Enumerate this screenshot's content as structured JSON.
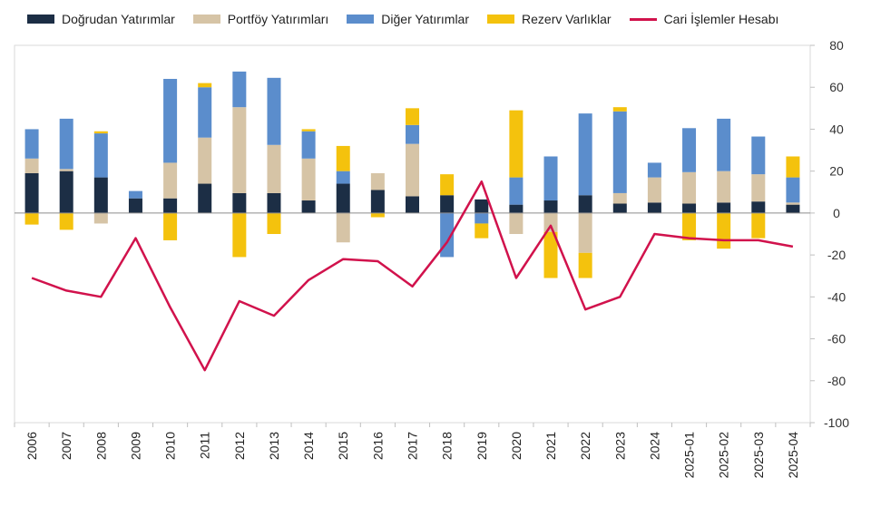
{
  "chart_data": {
    "type": "bar",
    "stacked": true,
    "categories": [
      "2006",
      "2007",
      "2008",
      "2009",
      "2010",
      "2011",
      "2012",
      "2013",
      "2014",
      "2015",
      "2016",
      "2017",
      "2018",
      "2019",
      "2020",
      "2021",
      "2022",
      "2023",
      "2024",
      "2025-01",
      "2025-02",
      "2025-03",
      "2025-04"
    ],
    "series": [
      {
        "name": "Doğrudan Yatırımlar",
        "kind": "bar",
        "color": "#1c2e45",
        "values": [
          19,
          20,
          17,
          7,
          7,
          14,
          9.5,
          9.5,
          6,
          14,
          11,
          8,
          8.5,
          6.5,
          4,
          6,
          8.5,
          4.5,
          5,
          4.5,
          5,
          5.5,
          4
        ]
      },
      {
        "name": "Portföy Yatırımları",
        "kind": "bar",
        "color": "#d6c4a6",
        "values": [
          7,
          1,
          -5,
          0,
          17,
          22,
          41,
          23,
          20,
          -14,
          8,
          25,
          0,
          0,
          -10,
          -9,
          -19,
          5,
          12,
          15,
          15,
          13,
          1
        ]
      },
      {
        "name": "Diğer Yatırımlar",
        "kind": "bar",
        "color": "#5b8dcc",
        "values": [
          14,
          24,
          21,
          3.5,
          40,
          24,
          17,
          32,
          13,
          6,
          0,
          9,
          -21,
          -5,
          13,
          21,
          39,
          39,
          7,
          21,
          25,
          18,
          12
        ]
      },
      {
        "name": "Rezerv Varlıklar",
        "kind": "bar",
        "color": "#f4c20d",
        "values": [
          -5.5,
          -8,
          1,
          0,
          -13,
          2,
          -21,
          -10,
          1,
          12,
          -2,
          8,
          10,
          -7,
          32,
          -22,
          -12,
          2,
          0,
          -13,
          -17,
          -12,
          10
        ]
      },
      {
        "name": "Cari İşlemler Hesabı",
        "kind": "line",
        "color": "#d1124c",
        "values": [
          -31,
          -37,
          -40,
          -12,
          -45,
          -75,
          -42,
          -49,
          -32,
          -22,
          -23,
          -35,
          -14,
          15,
          -31,
          -6,
          -46,
          -40,
          -10,
          -12,
          -13,
          -13,
          -16
        ]
      }
    ],
    "yaxis": {
      "position": "right",
      "min": -100,
      "max": 80,
      "ticks": [
        80,
        60,
        40,
        20,
        0,
        -20,
        -40,
        -60,
        -80,
        -100
      ]
    },
    "grid": false,
    "legend": "top"
  }
}
